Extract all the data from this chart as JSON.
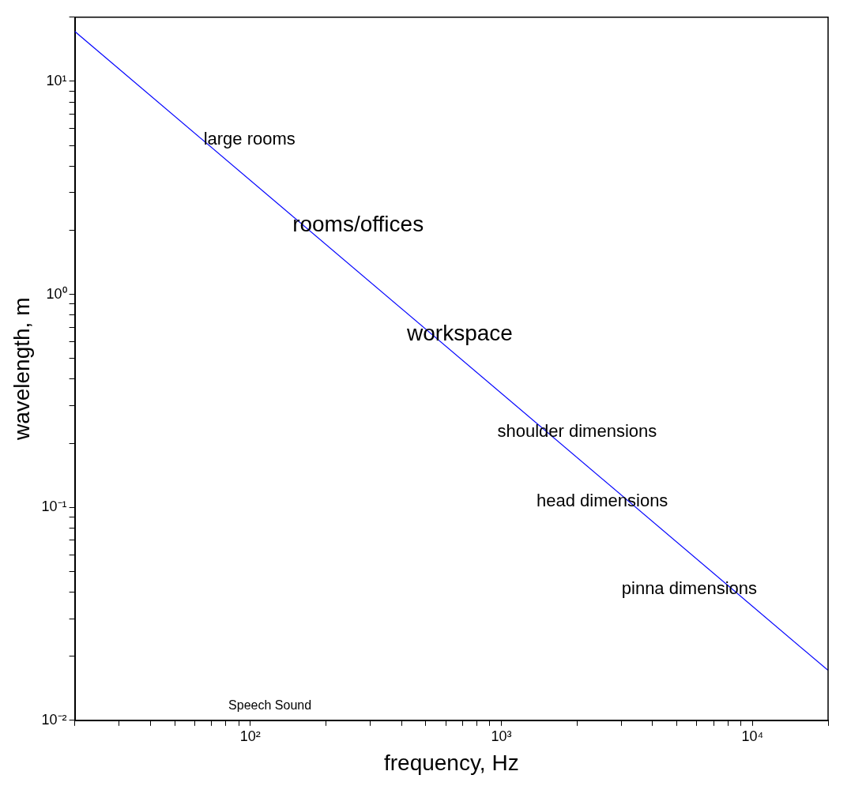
{
  "chart_data": {
    "type": "line",
    "xlabel": "frequency, Hz",
    "ylabel": "wavelength, m",
    "log": "xy",
    "grid": false,
    "legend": false,
    "marker": "none",
    "line_style": "solid",
    "x": [
      20,
      20000
    ],
    "series": [
      {
        "color": "#0000ff",
        "values": [
          17.15,
          0.01715
        ]
      }
    ],
    "xlim": [
      20,
      20000
    ],
    "ylim": [
      0.01,
      20
    ],
    "xticks": [
      {
        "value": 20,
        "label": null
      },
      {
        "value": 30,
        "label": null
      },
      {
        "value": 40,
        "label": null
      },
      {
        "value": 50,
        "label": null
      },
      {
        "value": 60,
        "label": null
      },
      {
        "value": 70,
        "label": null
      },
      {
        "value": 80,
        "label": null
      },
      {
        "value": 90,
        "label": null
      },
      {
        "value": 100,
        "label": "10²"
      },
      {
        "value": 200,
        "label": null
      },
      {
        "value": 300,
        "label": null
      },
      {
        "value": 400,
        "label": null
      },
      {
        "value": 500,
        "label": null
      },
      {
        "value": 600,
        "label": null
      },
      {
        "value": 700,
        "label": null
      },
      {
        "value": 800,
        "label": null
      },
      {
        "value": 900,
        "label": null
      },
      {
        "value": 1000,
        "label": "10³"
      },
      {
        "value": 2000,
        "label": null
      },
      {
        "value": 3000,
        "label": null
      },
      {
        "value": 4000,
        "label": null
      },
      {
        "value": 5000,
        "label": null
      },
      {
        "value": 6000,
        "label": null
      },
      {
        "value": 7000,
        "label": null
      },
      {
        "value": 8000,
        "label": null
      },
      {
        "value": 9000,
        "label": null
      },
      {
        "value": 10000,
        "label": "10⁴"
      },
      {
        "value": 20000,
        "label": null
      }
    ],
    "yticks": [
      {
        "value": 0.01,
        "label": "10⁻²"
      },
      {
        "value": 0.02,
        "label": null
      },
      {
        "value": 0.03,
        "label": null
      },
      {
        "value": 0.04,
        "label": null
      },
      {
        "value": 0.05,
        "label": null
      },
      {
        "value": 0.06,
        "label": null
      },
      {
        "value": 0.07,
        "label": null
      },
      {
        "value": 0.08,
        "label": null
      },
      {
        "value": 0.09,
        "label": null
      },
      {
        "value": 0.1,
        "label": "10⁻¹"
      },
      {
        "value": 0.2,
        "label": null
      },
      {
        "value": 0.3,
        "label": null
      },
      {
        "value": 0.4,
        "label": null
      },
      {
        "value": 0.5,
        "label": null
      },
      {
        "value": 0.6,
        "label": null
      },
      {
        "value": 0.7,
        "label": null
      },
      {
        "value": 0.8,
        "label": null
      },
      {
        "value": 0.9,
        "label": null
      },
      {
        "value": 1,
        "label": "10⁰"
      },
      {
        "value": 2,
        "label": null
      },
      {
        "value": 3,
        "label": null
      },
      {
        "value": 4,
        "label": null
      },
      {
        "value": 5,
        "label": null
      },
      {
        "value": 6,
        "label": null
      },
      {
        "value": 7,
        "label": null
      },
      {
        "value": 8,
        "label": null
      },
      {
        "value": 9,
        "label": null
      },
      {
        "value": 10,
        "label": "10¹"
      },
      {
        "value": 20,
        "label": null
      }
    ],
    "annotations": [
      "large rooms",
      "rooms/offices",
      "workspace",
      "shoulder dimensions",
      "head dimensions",
      "pinna dimensions",
      "Speech Sound"
    ]
  }
}
